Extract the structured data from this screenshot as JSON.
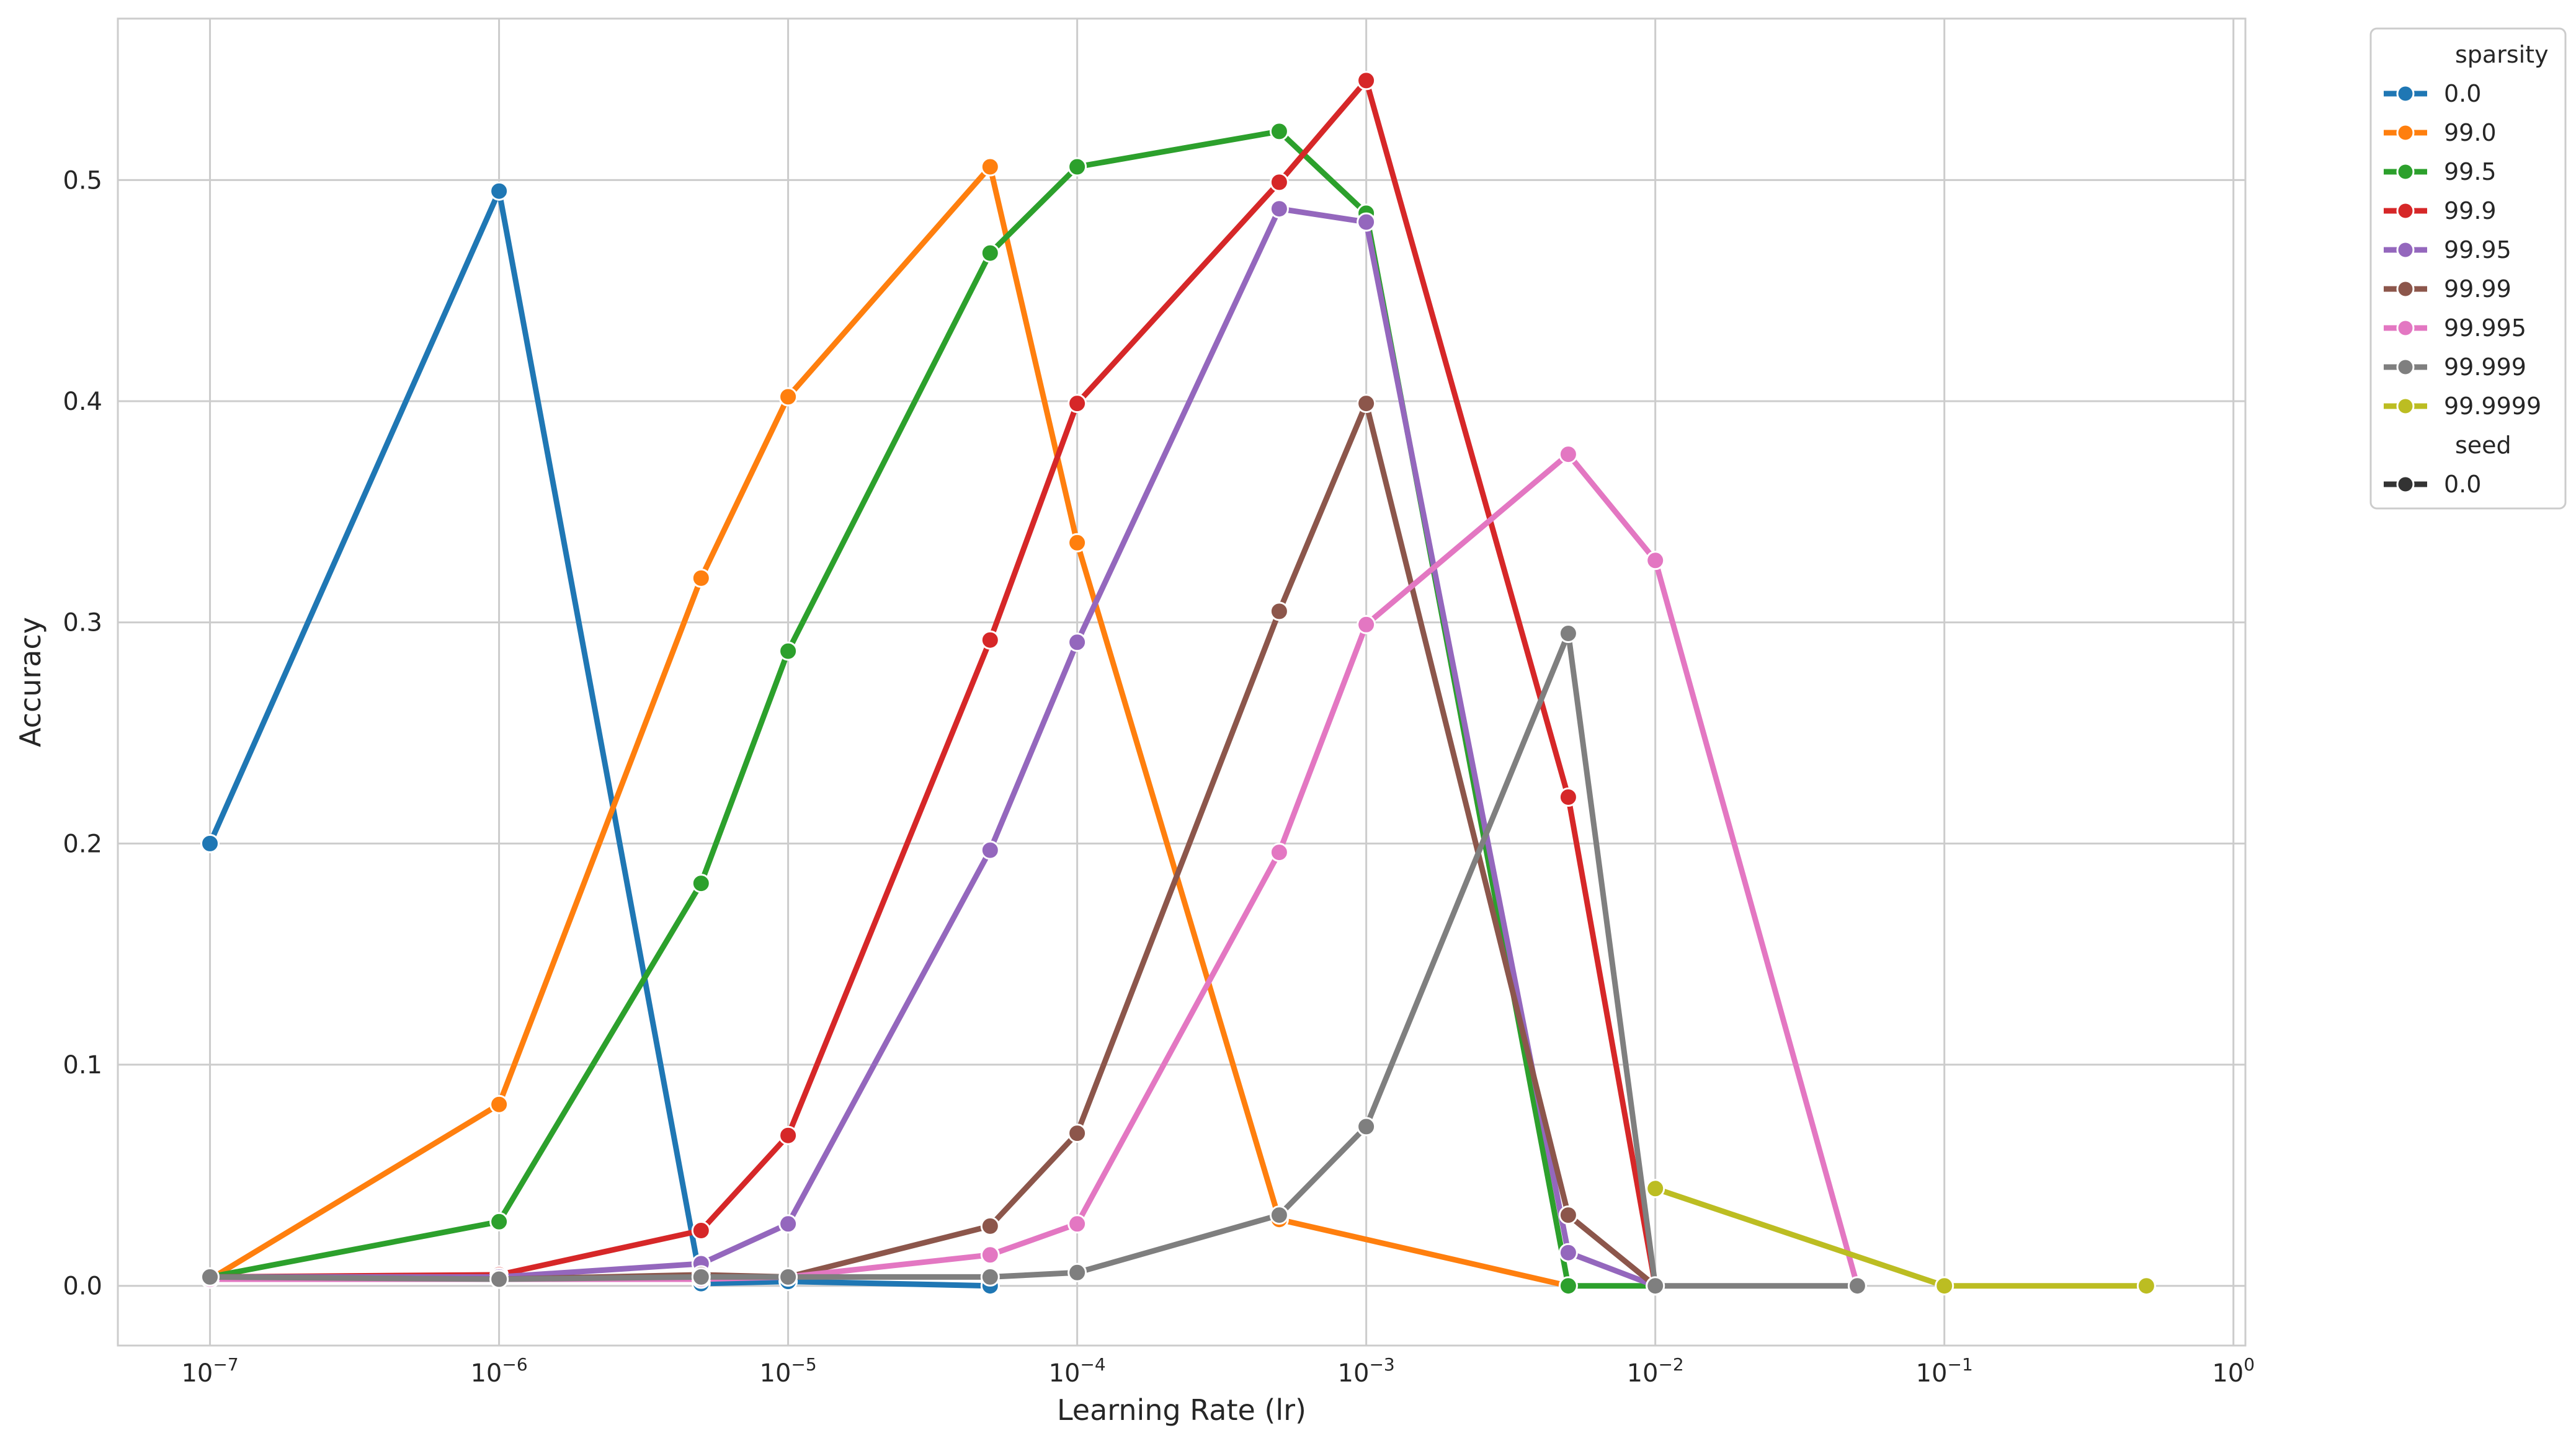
{
  "chart_data": {
    "type": "line",
    "xlabel": "Learning Rate (lr)",
    "ylabel": "Accuracy",
    "xscale": "log",
    "xlim": [
      4.8e-08,
      1.1
    ],
    "ylim": [
      -0.027,
      0.573
    ],
    "grid": true,
    "x_ticks": [
      {
        "value": 1e-07,
        "base": "10",
        "exp": "−7"
      },
      {
        "value": 1e-06,
        "base": "10",
        "exp": "−6"
      },
      {
        "value": 1e-05,
        "base": "10",
        "exp": "−5"
      },
      {
        "value": 0.0001,
        "base": "10",
        "exp": "−4"
      },
      {
        "value": 0.001,
        "base": "10",
        "exp": "−3"
      },
      {
        "value": 0.01,
        "base": "10",
        "exp": "−2"
      },
      {
        "value": 0.1,
        "base": "10",
        "exp": "−1"
      },
      {
        "value": 1,
        "base": "10",
        "exp": "0"
      }
    ],
    "y_ticks": [
      {
        "value": 0.0,
        "label": "0.0"
      },
      {
        "value": 0.1,
        "label": "0.1"
      },
      {
        "value": 0.2,
        "label": "0.2"
      },
      {
        "value": 0.3,
        "label": "0.3"
      },
      {
        "value": 0.4,
        "label": "0.4"
      },
      {
        "value": 0.5,
        "label": "0.5"
      }
    ],
    "legend": {
      "placement": "outside-upper-right",
      "sections": [
        {
          "title": "sparsity",
          "entries": [
            "0.0",
            "99.0",
            "99.5",
            "99.9",
            "99.95",
            "99.99",
            "99.995",
            "99.999",
            "99.9999"
          ]
        },
        {
          "title": "seed",
          "entries": [
            "0.0"
          ]
        }
      ],
      "seed_color": "#333333"
    },
    "series": [
      {
        "name": "0.0",
        "color": "#1f77b4",
        "points": [
          [
            1e-07,
            0.2
          ],
          [
            1e-06,
            0.495
          ],
          [
            5e-06,
            0.001
          ],
          [
            1e-05,
            0.002
          ],
          [
            5e-05,
            0.0
          ]
        ]
      },
      {
        "name": "99.0",
        "color": "#ff7f0e",
        "points": [
          [
            1e-07,
            0.003
          ],
          [
            1e-06,
            0.082
          ],
          [
            5e-06,
            0.32
          ],
          [
            1e-05,
            0.402
          ],
          [
            5e-05,
            0.506
          ],
          [
            0.0001,
            0.336
          ],
          [
            0.0005,
            0.03
          ],
          [
            0.005,
            0.0
          ]
        ]
      },
      {
        "name": "99.5",
        "color": "#2ca02c",
        "points": [
          [
            1e-07,
            0.004
          ],
          [
            1e-06,
            0.029
          ],
          [
            5e-06,
            0.182
          ],
          [
            1e-05,
            0.287
          ],
          [
            5e-05,
            0.467
          ],
          [
            0.0001,
            0.506
          ],
          [
            0.0005,
            0.522
          ],
          [
            0.001,
            0.485
          ],
          [
            0.005,
            0.0
          ],
          [
            0.01,
            0.0
          ]
        ]
      },
      {
        "name": "99.9",
        "color": "#d62728",
        "points": [
          [
            1e-07,
            0.004
          ],
          [
            1e-06,
            0.005
          ],
          [
            5e-06,
            0.025
          ],
          [
            1e-05,
            0.068
          ],
          [
            5e-05,
            0.292
          ],
          [
            0.0001,
            0.399
          ],
          [
            0.0005,
            0.499
          ],
          [
            0.001,
            0.545
          ],
          [
            0.005,
            0.221
          ],
          [
            0.01,
            0.0
          ]
        ]
      },
      {
        "name": "99.95",
        "color": "#9467bd",
        "points": [
          [
            1e-07,
            0.004
          ],
          [
            1e-06,
            0.004
          ],
          [
            5e-06,
            0.01
          ],
          [
            1e-05,
            0.028
          ],
          [
            5e-05,
            0.197
          ],
          [
            0.0001,
            0.291
          ],
          [
            0.0005,
            0.487
          ],
          [
            0.001,
            0.481
          ],
          [
            0.005,
            0.015
          ],
          [
            0.01,
            0.0
          ]
        ]
      },
      {
        "name": "99.99",
        "color": "#8c564b",
        "points": [
          [
            1e-07,
            0.004
          ],
          [
            1e-06,
            0.003
          ],
          [
            5e-06,
            0.005
          ],
          [
            1e-05,
            0.004
          ],
          [
            5e-05,
            0.027
          ],
          [
            0.0001,
            0.069
          ],
          [
            0.0005,
            0.305
          ],
          [
            0.001,
            0.399
          ],
          [
            0.005,
            0.032
          ],
          [
            0.01,
            0.0
          ]
        ]
      },
      {
        "name": "99.995",
        "color": "#e377c2",
        "points": [
          [
            1e-07,
            0.003
          ],
          [
            1e-06,
            0.003
          ],
          [
            5e-06,
            0.003
          ],
          [
            1e-05,
            0.004
          ],
          [
            5e-05,
            0.014
          ],
          [
            0.0001,
            0.028
          ],
          [
            0.0005,
            0.196
          ],
          [
            0.001,
            0.299
          ],
          [
            0.005,
            0.376
          ],
          [
            0.01,
            0.328
          ],
          [
            0.05,
            0.0
          ]
        ]
      },
      {
        "name": "99.999",
        "color": "#7f7f7f",
        "points": [
          [
            1e-07,
            0.004
          ],
          [
            1e-06,
            0.003
          ],
          [
            5e-06,
            0.004
          ],
          [
            1e-05,
            0.004
          ],
          [
            5e-05,
            0.004
          ],
          [
            0.0001,
            0.006
          ],
          [
            0.0005,
            0.032
          ],
          [
            0.001,
            0.072
          ],
          [
            0.005,
            0.295
          ],
          [
            0.01,
            0.0
          ],
          [
            0.05,
            0.0
          ]
        ]
      },
      {
        "name": "99.9999",
        "color": "#bcbd22",
        "points": [
          [
            0.01,
            0.044
          ],
          [
            0.1,
            0.0
          ],
          [
            0.5,
            0.0
          ]
        ]
      }
    ]
  }
}
